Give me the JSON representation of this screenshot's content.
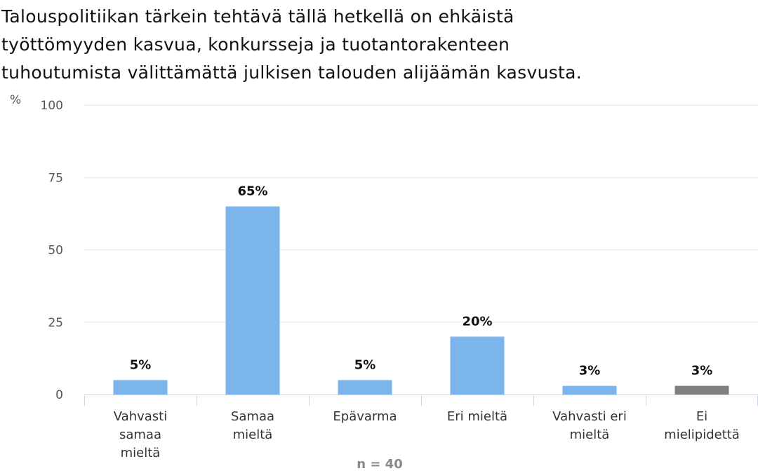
{
  "title_lines": [
    "Talouspolitiikan tärkein tehtävä tällä hetkellä on ehkäistä",
    "työttömyyden kasvua, konkursseja ja tuotantorakenteen",
    "tuhoutumista välittämättä julkisen talouden alijäämän kasvusta."
  ],
  "n_label": "n = 40",
  "chart_data": {
    "type": "bar",
    "title": "Talouspolitiikan tärkein tehtävä tällä hetkellä on ehkäistä työttömyyden kasvua, konkursseja ja tuotantorakenteen tuhoutumista välittämättä julkisen talouden alijäämän kasvusta.",
    "ylabel": "%",
    "ylim": [
      0,
      100
    ],
    "yticks": [
      0,
      25,
      50,
      75,
      100
    ],
    "grid": true,
    "categories": [
      [
        "Vahvasti",
        "samaa",
        "mieltä"
      ],
      [
        "Samaa",
        "mieltä"
      ],
      [
        "Epävarma"
      ],
      [
        "Eri mieltä"
      ],
      [
        "Vahvasti eri",
        "mieltä"
      ],
      [
        "Ei",
        "mielipidettä"
      ]
    ],
    "values": [
      5,
      65,
      5,
      20,
      3,
      3
    ],
    "data_labels": [
      "5%",
      "65%",
      "5%",
      "20%",
      "3%",
      "3%"
    ],
    "colors": [
      "#7cb5ec",
      "#7cb5ec",
      "#7cb5ec",
      "#7cb5ec",
      "#7cb5ec",
      "#808080"
    ],
    "gridline_color": "#e6e6e6",
    "axis_color": "#ccd6eb"
  }
}
